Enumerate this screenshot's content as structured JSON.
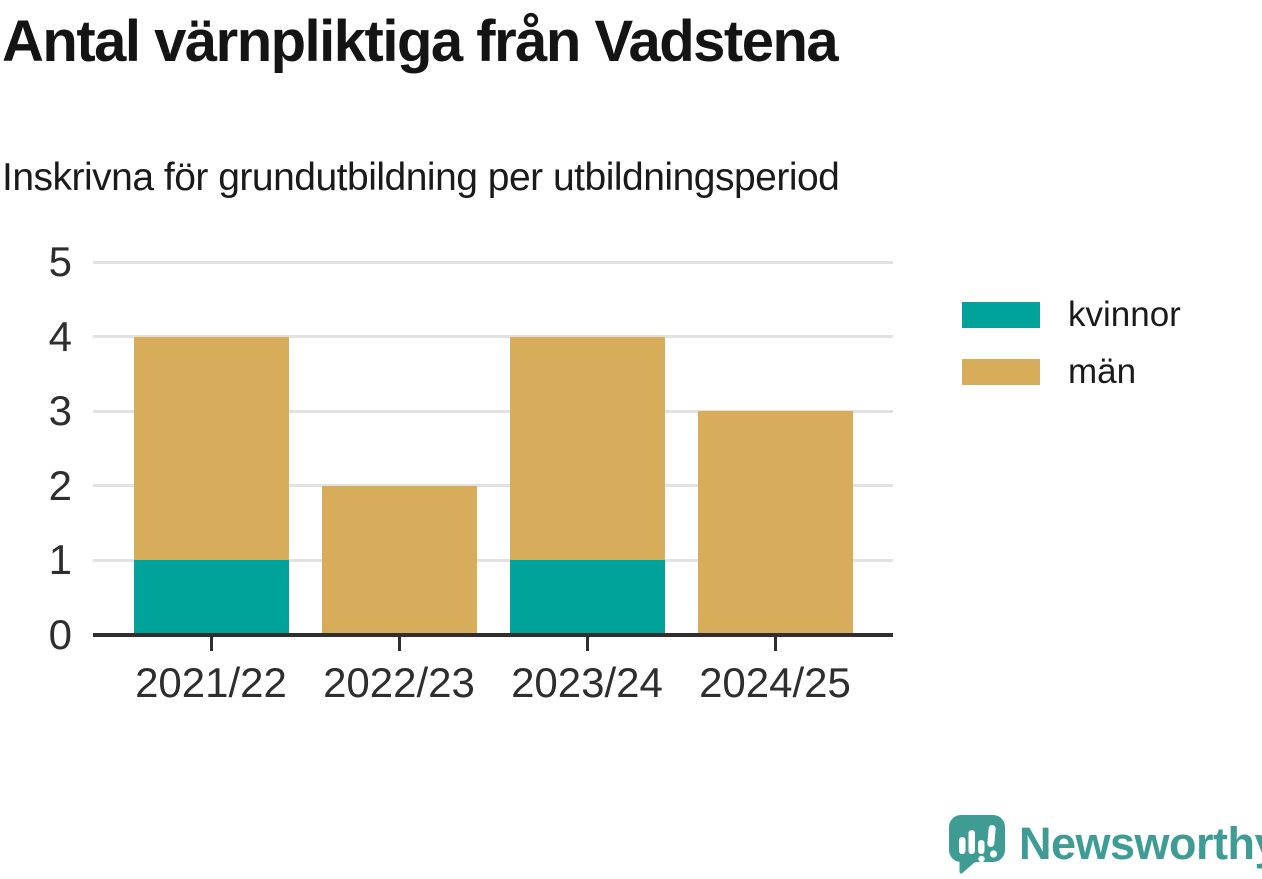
{
  "title": "Antal värnpliktiga från Vadstena",
  "subtitle": "Inskrivna för grundutbildning per utbildningsperiod",
  "colors": {
    "kvinnor": "#00a39a",
    "man": "#d7ac5b",
    "grid": "#e2e2e2",
    "axis": "#2f2f2f",
    "tick_text": "#2e2e2e",
    "title_text": "#141414",
    "brand": "#3f9c94"
  },
  "chart_data": {
    "type": "bar",
    "stacked": true,
    "title": "Antal värnpliktiga från Vadstena",
    "subtitle": "Inskrivna för grundutbildning per utbildningsperiod",
    "categories": [
      "2021/22",
      "2022/23",
      "2023/24",
      "2024/25"
    ],
    "series": [
      {
        "name": "kvinnor",
        "color": "#00a39a",
        "values": [
          1,
          0,
          1,
          0
        ]
      },
      {
        "name": "män",
        "color": "#d7ac5b",
        "values": [
          3,
          2,
          3,
          3
        ]
      }
    ],
    "xlabel": "",
    "ylabel": "",
    "ylim": [
      0,
      5
    ],
    "yticks": [
      0,
      1,
      2,
      3,
      4,
      5
    ],
    "grid": true,
    "legend_position": "right"
  },
  "legend": {
    "items": [
      {
        "label": "kvinnor",
        "color": "#00a39a"
      },
      {
        "label": "män",
        "color": "#d7ac5b"
      }
    ]
  },
  "branding": {
    "name": "Newsworthy",
    "color": "#3f9c94",
    "icon": "newsworthy-speech-bubble-chart-icon"
  }
}
